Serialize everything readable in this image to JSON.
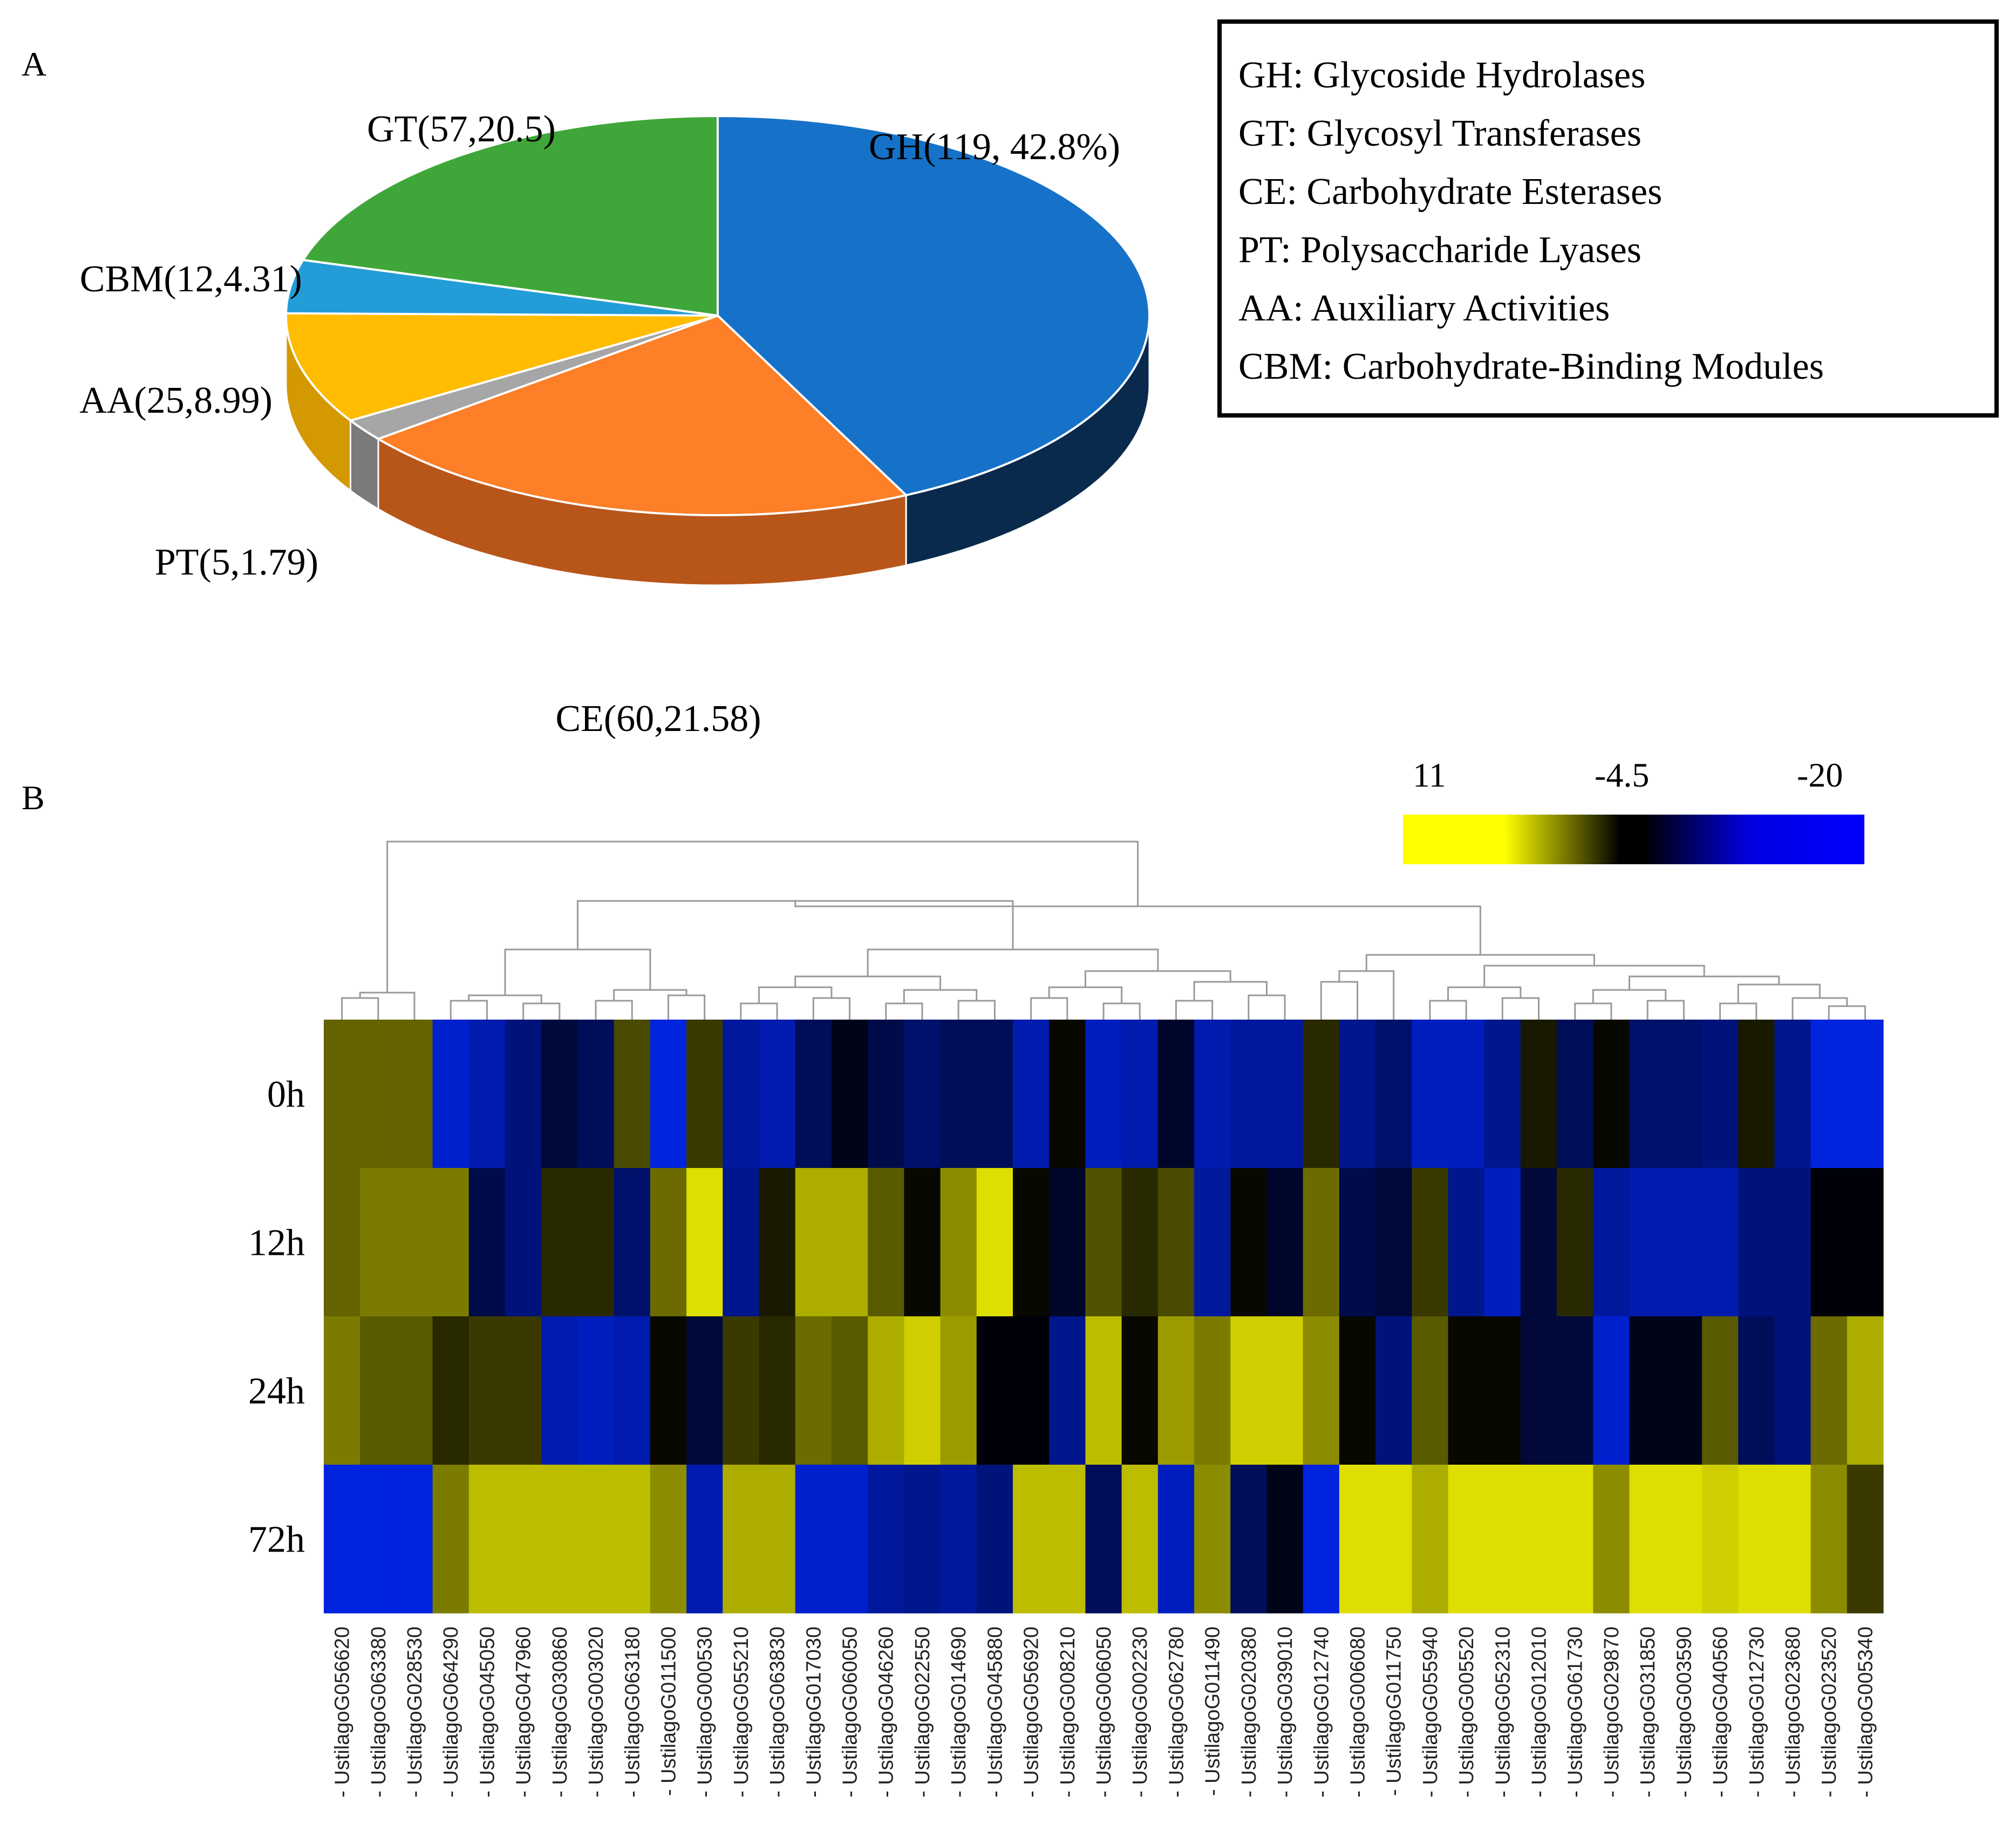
{
  "panel_labels": {
    "a": "A",
    "b": "B"
  },
  "chart_data": [
    {
      "type": "pie",
      "title": "",
      "slices": [
        {
          "key": "GH",
          "label": "GH(119, 42.8%)",
          "count": 119,
          "percent": 42.8,
          "color": "#1672C8",
          "side_color": "#0A2A4D",
          "label_side": "right"
        },
        {
          "key": "CE",
          "label": "CE(60,21.58)",
          "count": 60,
          "percent": 21.58,
          "color": "#FD7F27",
          "side_color": "#B8561A",
          "label_side": "center"
        },
        {
          "key": "PT",
          "label": "PT(5,1.79)",
          "count": 5,
          "percent": 1.79,
          "color": "#A6A6A6",
          "side_color": "#7A7A7A",
          "label_side": "left"
        },
        {
          "key": "AA",
          "label": "AA(25,8.99)",
          "count": 25,
          "percent": 8.99,
          "color": "#FFBC00",
          "side_color": "#D49800",
          "label_side": "left"
        },
        {
          "key": "CBM",
          "label": "CBM(12,4.31)",
          "count": 12,
          "percent": 4.31,
          "color": "#239DD8",
          "side_color": "#1A77A6",
          "label_side": "left"
        },
        {
          "key": "GT",
          "label": "GT(57,20.5)",
          "count": 57,
          "percent": 20.5,
          "color": "#3FA739",
          "side_color": "#2D7A29",
          "label_side": "left"
        }
      ],
      "legend": [
        "GH: Glycoside Hydrolases",
        "GT: Glycosyl Transferases",
        "CE: Carbohydrate Esterases",
        "PT: Polysaccharide Lyases",
        "AA: Auxiliary Activities",
        "CBM: Carbohydrate-Binding Modules"
      ]
    },
    {
      "type": "heatmap",
      "title": "",
      "color_scale": {
        "tick_labels": [
          "11",
          "-4.5",
          "-20"
        ],
        "max": 11,
        "mid": -4.5,
        "min": -20,
        "colors": [
          "#FFFF00",
          "#000000",
          "#0000FF"
        ]
      },
      "rows": [
        "0h",
        "12h",
        "24h",
        "72h"
      ],
      "columns": [
        "UstilagoG056620",
        "UstilagoG063380",
        "UstilagoG028530",
        "UstilagoG064290",
        "UstilagoG045050",
        "UstilagoG047960",
        "UstilagoG030860",
        "UstilagoG003020",
        "UstilagoG063180",
        "UstilagoG011500",
        "UstilagoG000530",
        "UstilagoG055210",
        "UstilagoG063830",
        "UstilagoG017030",
        "UstilagoG060050",
        "UstilagoG046260",
        "UstilagoG022550",
        "UstilagoG014690",
        "UstilagoG045880",
        "UstilagoG056920",
        "UstilagoG008210",
        "UstilagoG006050",
        "UstilagoG002230",
        "UstilagoG062780",
        "UstilagoG011490",
        "UstilagoG020380",
        "UstilagoG039010",
        "UstilagoG012740",
        "UstilagoG006080",
        "UstilagoG011750",
        "UstilagoG055940",
        "UstilagoG005520",
        "UstilagoG052310",
        "UstilagoG012010",
        "UstilagoG061730",
        "UstilagoG029870",
        "UstilagoG031850",
        "UstilagoG003590",
        "UstilagoG040560",
        "UstilagoG012730",
        "UstilagoG023680",
        "UstilagoG023520",
        "UstilagoG005340"
      ],
      "values": [
        [
          1.5,
          1.5,
          1.5,
          -17,
          -15,
          -12,
          -8,
          -10,
          0,
          -18,
          -1,
          -14,
          -15,
          -10,
          -6,
          -9,
          -11,
          -10,
          -10,
          -15,
          -4,
          -16,
          -15,
          -7,
          -15,
          -14,
          -14,
          -2,
          -13,
          -11,
          -16,
          -16,
          -13,
          -3,
          -10,
          -4,
          -11,
          -11,
          -12,
          -3,
          -13,
          -18,
          -18
        ],
        [
          1.5,
          3,
          3,
          3,
          -9,
          -12,
          -2,
          -2,
          -11,
          2,
          9,
          -13,
          -3,
          6,
          6,
          1,
          -4,
          4,
          9,
          -4,
          -7,
          0.5,
          -2,
          0,
          -14,
          -4,
          -7,
          2,
          -9,
          -8,
          -1,
          -13,
          -16,
          -8,
          -2,
          -14,
          -15,
          -15,
          -15,
          -12,
          -12,
          -5,
          -5
        ],
        [
          3,
          1,
          1,
          -2,
          -1,
          -1,
          -15,
          -16,
          -15,
          -4,
          -8,
          -1,
          -2,
          2,
          1,
          6,
          8,
          5,
          -5,
          -5,
          -13,
          7,
          -4,
          5,
          3,
          8,
          8,
          4,
          -4,
          -12,
          1,
          -4,
          -4,
          -8,
          -8,
          -17,
          -6,
          -6,
          1,
          -10,
          -12,
          2,
          6
        ],
        [
          -18,
          -18,
          -18,
          3,
          7,
          7,
          7,
          7,
          7,
          4,
          -15,
          6,
          6,
          -17,
          -17,
          -14,
          -13,
          -14,
          -12,
          7,
          7,
          -10,
          7,
          -16,
          4,
          -10,
          -6,
          -18,
          9,
          9,
          6,
          9,
          9,
          9,
          9,
          4,
          9,
          9,
          8,
          9,
          9,
          4,
          -1
        ]
      ]
    }
  ]
}
